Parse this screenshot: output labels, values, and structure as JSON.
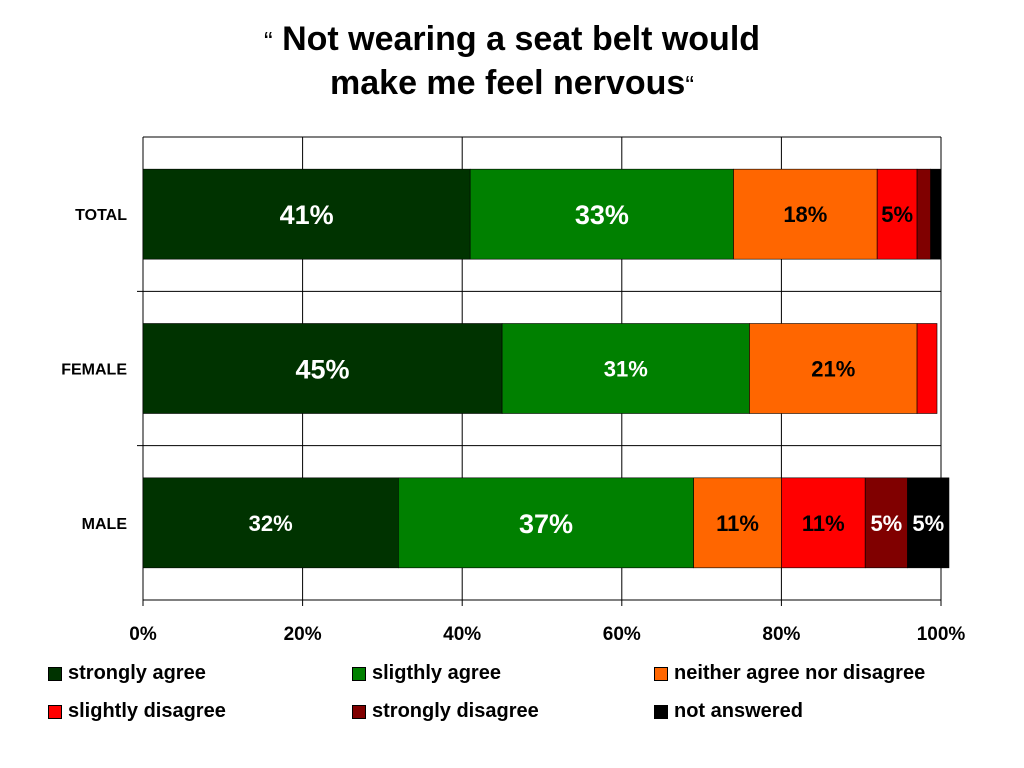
{
  "title": {
    "open_quote": "“",
    "line1": "Not wearing a seat belt would",
    "line2": "make me feel nervous",
    "close_quote": "“"
  },
  "chart_data": {
    "type": "bar",
    "orientation": "horizontal",
    "stacked": true,
    "categories": [
      "TOTAL",
      "FEMALE",
      "MALE"
    ],
    "x_ticks": [
      "0%",
      "20%",
      "40%",
      "60%",
      "80%",
      "100%"
    ],
    "xlim": [
      0,
      100
    ],
    "grid": true,
    "legend_position": "bottom",
    "series": [
      {
        "name": "strongly agree",
        "color": "#003300",
        "values": [
          41,
          45,
          32
        ],
        "labels": [
          "41%",
          "45%",
          "32%"
        ]
      },
      {
        "name": "sligthly agree",
        "color": "#008000",
        "values": [
          33,
          31,
          37
        ],
        "labels": [
          "33%",
          "31%",
          "37%"
        ]
      },
      {
        "name": "neither agree nor disagree",
        "color": "#FF6600",
        "values": [
          18,
          21,
          11
        ],
        "labels": [
          "18%",
          "21%",
          "11%"
        ]
      },
      {
        "name": "slightly disagree",
        "color": "#FF0000",
        "values": [
          5,
          2.5,
          10.5
        ],
        "labels": [
          "5%",
          "",
          "11%"
        ]
      },
      {
        "name": "strongly disagree",
        "color": "#800000",
        "values": [
          1.7,
          0,
          5.3
        ],
        "labels": [
          "",
          "",
          "5%"
        ]
      },
      {
        "name": "not answered",
        "color": "#000000",
        "values": [
          1.3,
          0,
          5.2
        ],
        "labels": [
          "",
          "",
          "5%"
        ]
      }
    ]
  }
}
